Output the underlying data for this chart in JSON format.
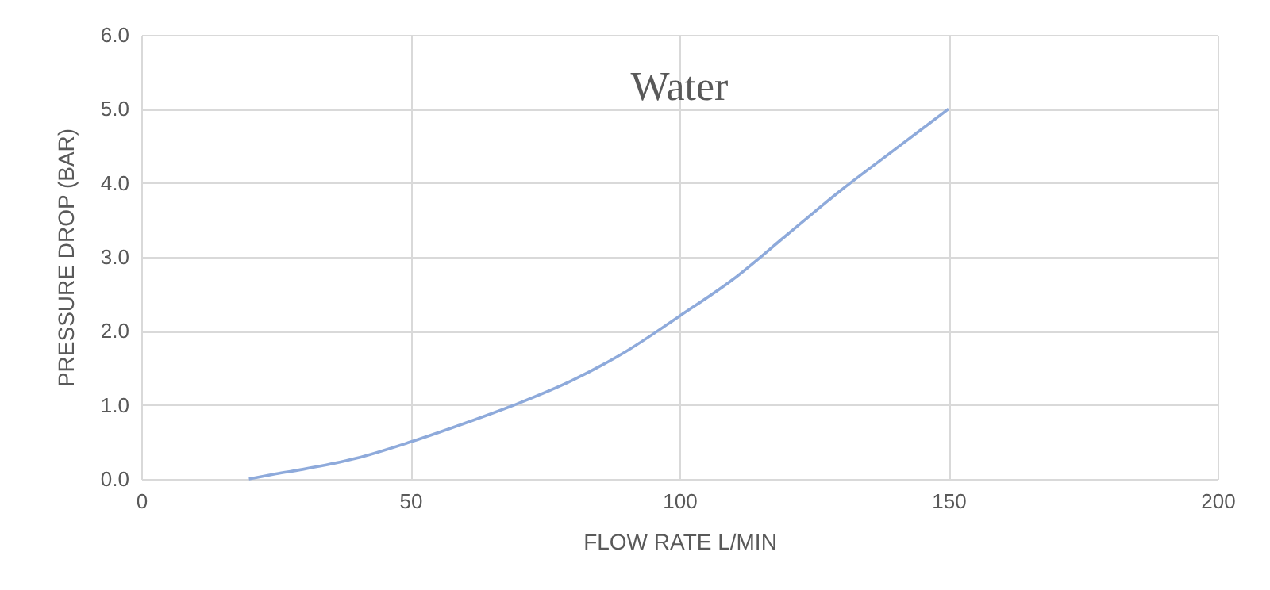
{
  "chart_data": {
    "type": "line",
    "title": "Water",
    "xlabel": "FLOW RATE L/MIN",
    "ylabel": "PRESSURE DROP (BAR)",
    "series": [
      {
        "color": "#8eaadb",
        "x": [
          20,
          25,
          30,
          40,
          50,
          60,
          70,
          80,
          90,
          100,
          110,
          120,
          130,
          140,
          150
        ],
        "values": [
          0,
          0.07,
          0.13,
          0.28,
          0.5,
          0.75,
          1.02,
          1.33,
          1.72,
          2.2,
          2.7,
          3.3,
          3.9,
          4.45,
          5.0
        ]
      }
    ],
    "xlim": [
      0,
      200
    ],
    "xticks": [
      0,
      50,
      100,
      150,
      200
    ],
    "ylim": [
      0,
      6
    ],
    "yticks": [
      {
        "value": 0,
        "label": "0.0"
      },
      {
        "value": 1,
        "label": "1.0"
      },
      {
        "value": 2,
        "label": "2.0"
      },
      {
        "value": 3,
        "label": "3.0"
      },
      {
        "value": 4,
        "label": "4.0"
      },
      {
        "value": 5,
        "label": "5.0"
      },
      {
        "value": 6,
        "label": "6.0"
      }
    ],
    "grid": true,
    "marker": "none",
    "line_style": "solid"
  }
}
